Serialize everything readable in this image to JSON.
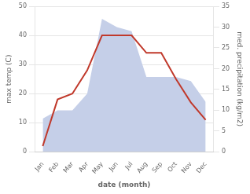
{
  "chart_data": {
    "type": "line",
    "xlabel": "date (month)",
    "ylabel": "max temp (C)",
    "y2label": "med. precipitation (kg/m2)",
    "categories": [
      "Jan",
      "Feb",
      "Mar",
      "Apr",
      "May",
      "Jun",
      "Jul",
      "Aug",
      "Sep",
      "Oct",
      "Nov",
      "Dec"
    ],
    "series": [
      {
        "type": "line",
        "color": "#c0392b",
        "values": [
          2,
          18,
          20,
          28,
          40,
          40,
          40,
          34,
          34,
          25,
          17,
          11
        ]
      },
      {
        "type": "area",
        "color": "#c5cfe8",
        "axis": "y2",
        "values": [
          8,
          10,
          10,
          14,
          32,
          30,
          29,
          18,
          18,
          18,
          17,
          12
        ]
      }
    ],
    "ylim": [
      0,
      50
    ],
    "yticks": [
      0,
      10,
      20,
      30,
      40,
      50
    ],
    "y2lim": [
      0,
      35
    ],
    "y2ticks": [
      0,
      5,
      10,
      15,
      20,
      25,
      30,
      35
    ],
    "grid": true
  }
}
